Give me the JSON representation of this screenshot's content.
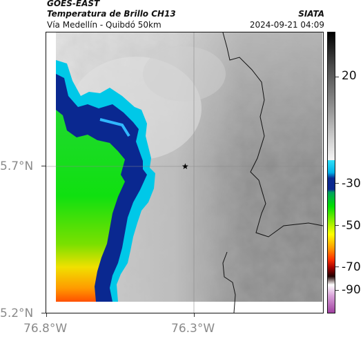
{
  "header": {
    "satellite": "GOES-EAST",
    "product": "Temperatura de Brillo CH13",
    "source": "SIATA",
    "region": "Vía Medellín - Quibdó 50km",
    "datetime": "2024-09-21 04:09"
  },
  "map": {
    "x_ticks": [
      "76.8°W",
      "76.3°W"
    ],
    "y_ticks": [
      "5.7°N",
      "5.2°N"
    ],
    "marker_icon": "star-marker-icon",
    "cold_color": "#0a2890",
    "warm_color": "#9a9a9a",
    "border_color": "#111111"
  },
  "colorbar": {
    "ticks": [
      "20",
      "-30",
      "-50",
      "-70",
      "-90"
    ],
    "colors": [
      "#000000",
      "#5a5a5a",
      "#9a9a9a",
      "#d8d8d8",
      "#ffffff",
      "#00c8e8",
      "#0a2890",
      "#00e000",
      "#ffff00",
      "#ff8000",
      "#c00000",
      "#300000",
      "#e0a0e0",
      "#a040a0"
    ]
  }
}
